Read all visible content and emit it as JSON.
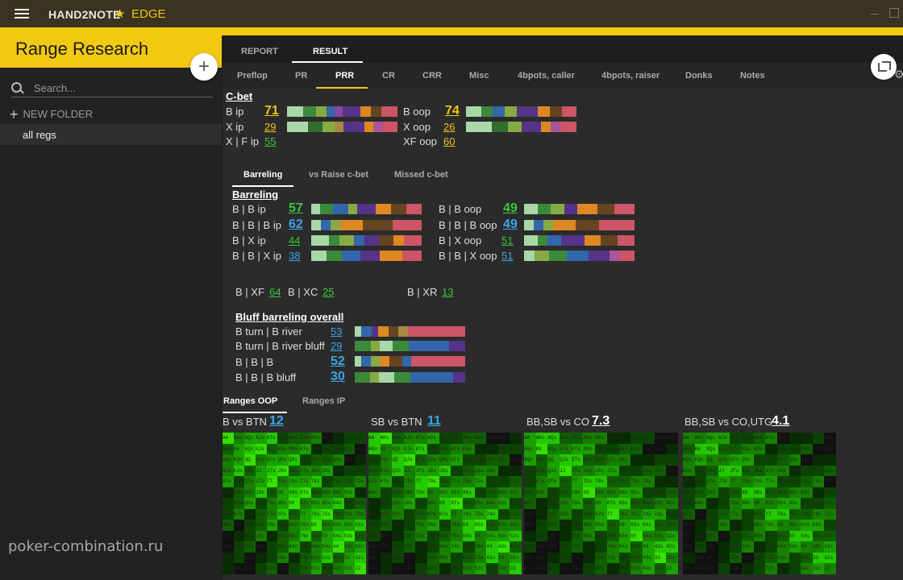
{
  "titlebar": {
    "app_name": "HAND2NOTE",
    "star_icon": "★",
    "edition": "EDGE"
  },
  "sidebar": {
    "title": "Range Research",
    "add_symbol": "+",
    "search_placeholder": "Search...",
    "new_folder": "NEW FOLDER",
    "folders": [
      "all regs"
    ]
  },
  "tabs_top": [
    "REPORT",
    "RESULT"
  ],
  "tabs_second": [
    "Preflop",
    "PR",
    "PRR",
    "CR",
    "CRR",
    "Misc",
    "4bpots, caller",
    "4bpots, raiser",
    "Donks",
    "Notes"
  ],
  "cbet": {
    "header": "C-bet",
    "rows": [
      {
        "label": "B ip",
        "value": "71"
      },
      {
        "label": "X ip",
        "value": "29"
      },
      {
        "label": "X | F ip",
        "value": "55"
      },
      {
        "label": "B oop",
        "value": "74"
      },
      {
        "label": "X oop",
        "value": "26"
      },
      {
        "label": "XF oop",
        "value": "60"
      }
    ]
  },
  "subtabs": [
    "Barreling",
    "vs Raise c-bet",
    "Missed c-bet"
  ],
  "barreling": {
    "header": "Barreling",
    "rows": [
      {
        "label": "B | B ip",
        "value": "57"
      },
      {
        "label": "B | B | B ip",
        "value": "62"
      },
      {
        "label": "B | X  ip",
        "value": "44"
      },
      {
        "label": "B | B | X ip",
        "value": "38"
      },
      {
        "label": "B | B oop",
        "value": "49"
      },
      {
        "label": "B | B | B oop",
        "value": "49"
      },
      {
        "label": "B | X oop",
        "value": "51"
      },
      {
        "label": "B | B | X oop",
        "value": "51"
      }
    ],
    "extras": [
      {
        "label": "B | XF",
        "value": "64"
      },
      {
        "label": "B | XC",
        "value": "25"
      },
      {
        "label": "B | XR",
        "value": "13"
      }
    ]
  },
  "bluff": {
    "header": "Bluff barreling overall",
    "rows": [
      {
        "label": "B turn | B river",
        "value": "53"
      },
      {
        "label": "B turn | B river bluff",
        "value": "29"
      },
      {
        "label": "B | B | B",
        "value": "52"
      },
      {
        "label": "B | B | B bluff",
        "value": "30"
      }
    ]
  },
  "range_tabs": [
    "Ranges OOP",
    "Ranges IP"
  ],
  "ranges": [
    {
      "label": "B vs BTN",
      "value": "12"
    },
    {
      "label": "SB vs BTN",
      "value": "11"
    },
    {
      "label": "BB,SB vs CO",
      "value": "7.3"
    },
    {
      "label": "BB,SB vs CO,UTG",
      "value": "4.1"
    }
  ],
  "hand_rows": [
    [
      "AA",
      "AKs",
      "AQs",
      "AJs",
      "ATs",
      "A9s",
      "A8s",
      "A7s",
      "A6s",
      "A5s",
      "A4s",
      "A3s",
      "A2s"
    ],
    [
      "AKo",
      "KK",
      "KQs",
      "KJs",
      "KTs",
      "K9s",
      "K8s",
      "K7s",
      "K6s",
      "K5s",
      "K4s",
      "K3s",
      "K2s"
    ],
    [
      "AQo",
      "KQo",
      "QQ",
      "QJs",
      "QTs",
      "Q9s",
      "Q8s",
      "Q7s",
      "Q6s",
      "Q5s",
      "Q4s",
      "Q3s",
      "Q2s"
    ],
    [
      "AJo",
      "KJo",
      "QJo",
      "JJ",
      "JTs",
      "J9s",
      "J8s",
      "J7s",
      "J6s",
      "J5s",
      "J4s",
      "J3s",
      "J2s"
    ],
    [
      "ATo",
      "KTo",
      "QTo",
      "JTo",
      "TT",
      "T9s",
      "T8s",
      "T7s",
      "T6s",
      "T5s",
      "T4s",
      "T3s",
      "T2s"
    ],
    [
      "A9o",
      "K9o",
      "Q9o",
      "J9o",
      "T9o",
      "99",
      "98s",
      "97s",
      "96s",
      "95s",
      "94s",
      "93s",
      "92s"
    ],
    [
      "A8o",
      "K8o",
      "Q8o",
      "J8o",
      "T8o",
      "98o",
      "88",
      "87s",
      "86s",
      "85s",
      "84s",
      "83s",
      "82s"
    ],
    [
      "A7o",
      "K7o",
      "Q7o",
      "J7o",
      "T7o",
      "97o",
      "87o",
      "77",
      "76s",
      "75s",
      "74s",
      "73s",
      "72s"
    ],
    [
      "A6o",
      "K6o",
      "Q6o",
      "J6o",
      "T6o",
      "96o",
      "86o",
      "76o",
      "66",
      "65s",
      "64s",
      "63s",
      "62s"
    ],
    [
      "A5o",
      "K5o",
      "Q5o",
      "J5o",
      "T5o",
      "95o",
      "85o",
      "75o",
      "65o",
      "55",
      "54s",
      "53s",
      "52s"
    ],
    [
      "A4o",
      "K4o",
      "Q4o",
      "J4o",
      "T4o",
      "94o",
      "84o",
      "74o",
      "64o",
      "54o",
      "44",
      "43s",
      "42s"
    ],
    [
      "A3o",
      "K3o",
      "Q3o",
      "J3o",
      "T3o",
      "93o",
      "83o",
      "73o",
      "63o",
      "53o",
      "43o",
      "33",
      "32s"
    ],
    [
      "A2o",
      "K2o",
      "Q2o",
      "J2o",
      "T2o",
      "92o",
      "82o",
      "72o",
      "62o",
      "52o",
      "42o",
      "32o",
      "22"
    ]
  ],
  "watermark": "poker-combination.ru",
  "colors": {
    "accent": "#f2c811",
    "green_value": "#3cc63c",
    "blue_value": "#3aa6e8",
    "yellow_value": "#f0c419"
  }
}
